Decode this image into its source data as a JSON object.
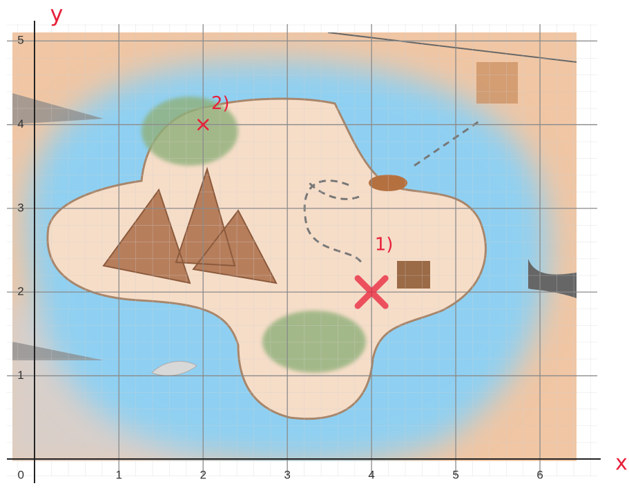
{
  "chart_data": {
    "type": "scatter",
    "x_label": "x",
    "y_label": "y",
    "x": [
      4,
      2
    ],
    "values": [
      2,
      4
    ],
    "annotations": [
      "1)",
      "2)"
    ],
    "color": "#e8203a",
    "xlim": [
      -0.33,
      6.68
    ],
    "ylim": [
      -0.2,
      5.2
    ],
    "xticks": [
      0,
      1,
      2,
      3,
      4,
      5,
      6
    ],
    "yticks": [
      1,
      2,
      3,
      4,
      5
    ],
    "grid": true
  }
}
